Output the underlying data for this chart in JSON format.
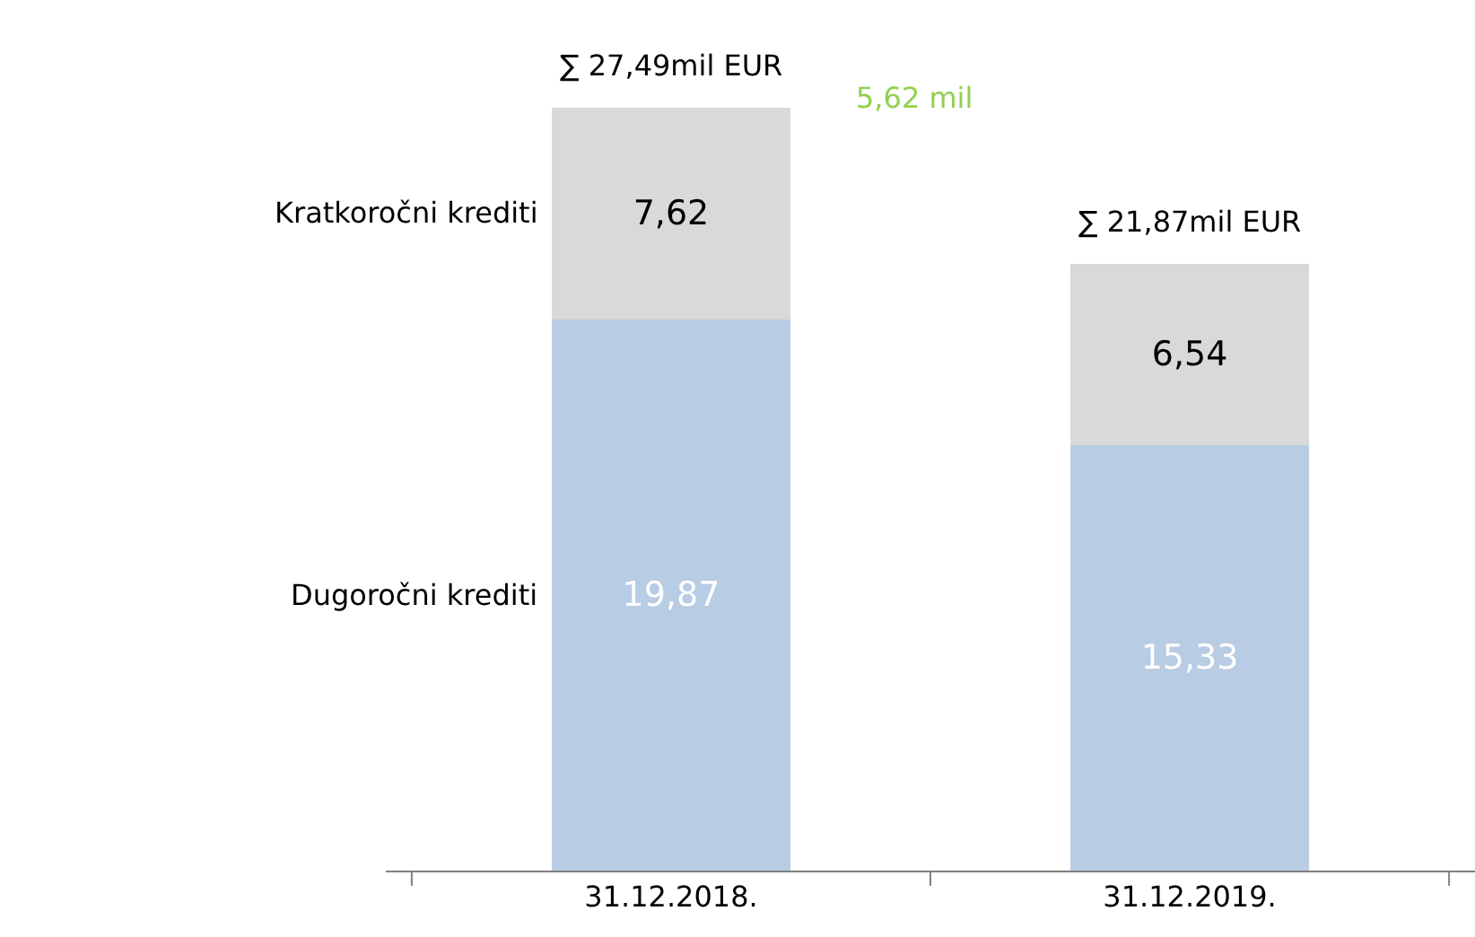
{
  "chart_data": {
    "type": "bar",
    "stacked": true,
    "legend": "left",
    "categories": [
      "31.12.2018.",
      "31.12.2019."
    ],
    "series": [
      {
        "name": "Dugoročni krediti",
        "color": "#b8cce4",
        "values": [
          19.87,
          15.33
        ],
        "value_labels": [
          "19,87",
          "15,33"
        ]
      },
      {
        "name": "Kratkoročni krediti",
        "color": "#d9d9d9",
        "values": [
          7.62,
          6.54
        ],
        "value_labels": [
          "7,62",
          "6,54"
        ]
      }
    ],
    "totals": [
      "∑ 27,49mil EUR",
      "∑ 21,87mil EUR"
    ],
    "annotations": [
      "5,62 mil"
    ]
  }
}
